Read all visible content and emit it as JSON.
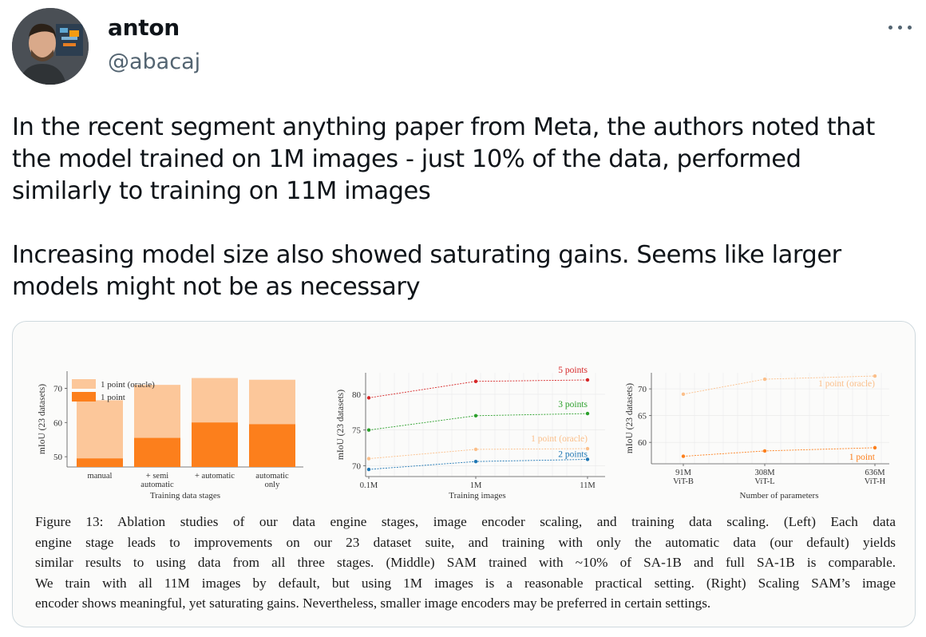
{
  "author": {
    "name": "anton",
    "handle": "@abacaj"
  },
  "tweet": {
    "paragraph1": "In the recent segment anything paper from Meta, the authors noted that\nthe model trained on 1M images - just 10% of the data, performed\nsimilarly to training on 11M images",
    "paragraph2": "Increasing model size also showed saturating gains. Seems like larger\nmodels might not be as necessary"
  },
  "figure": {
    "caption_lines": [
      "Figure 13:  Ablation studies of our data engine stages, image encoder scaling, and training data scaling.  (Left) Each data",
      "engine stage leads to improvements on our 23 dataset suite, and training with only the automatic data (our default) yields",
      "similar results to using data from all three stages. (Middle) SAM trained with ~10% of SA-1B and full SA-1B is comparable.",
      "We train with all 11M images by default, but using 1M images is a reasonable practical setting. (Right) Scaling SAM’s image",
      "encoder shows meaningful, yet saturating gains. Nevertheless, smaller image encoders may be preferred in certain settings."
    ]
  },
  "colors": {
    "light_orange": "#fcc79a",
    "dark_orange": "#fc7f1c",
    "red": "#d62728",
    "green": "#2ca02c",
    "blue": "#1f77b4",
    "faint_orange": "#fbbf8a"
  },
  "chart_data": [
    {
      "type": "bar",
      "ylabel": "mIoU (23 datasets)",
      "xlabel": "Training data stages",
      "categories": [
        "manual",
        "+ semi\nautomatic",
        "+ automatic",
        "automatic\nonly"
      ],
      "yticks": [
        "50",
        "60",
        "70"
      ],
      "ylim": [
        47,
        75
      ],
      "legend": "top-left",
      "series": [
        {
          "name": "1 point (oracle)",
          "values": [
            66.5,
            71,
            73,
            72.5
          ]
        },
        {
          "name": "1 point",
          "values": [
            49.5,
            55.5,
            60,
            59.5
          ]
        }
      ]
    },
    {
      "type": "line",
      "ylabel": "mIoU (23 datasets)",
      "xlabel": "Training images",
      "x": [
        "0.1M",
        "1M",
        "11M"
      ],
      "yticks": [
        "70",
        "75",
        "80"
      ],
      "ylim": [
        68.5,
        83
      ],
      "grid": true,
      "series": [
        {
          "name": "5 points",
          "values": [
            79.5,
            81.8,
            82
          ]
        },
        {
          "name": "3 points",
          "values": [
            75,
            77,
            77.3
          ]
        },
        {
          "name": "1 point (oracle)",
          "values": [
            71,
            72.3,
            72.4
          ]
        },
        {
          "name": "2 points",
          "values": [
            69.5,
            70.6,
            70.9
          ]
        }
      ]
    },
    {
      "type": "line",
      "ylabel": "mIoU (23 datasets)",
      "xlabel": "Number of parameters",
      "x": [
        "91M\nViT-B",
        "308M\nViT-L",
        "636M\nViT-H"
      ],
      "yticks": [
        "60",
        "65",
        "70"
      ],
      "ylim": [
        56,
        73
      ],
      "grid": true,
      "series": [
        {
          "name": "1 point (oracle)",
          "values": [
            69,
            71.8,
            72.4
          ]
        },
        {
          "name": "1 point",
          "values": [
            57.4,
            58.4,
            59
          ]
        }
      ]
    }
  ]
}
